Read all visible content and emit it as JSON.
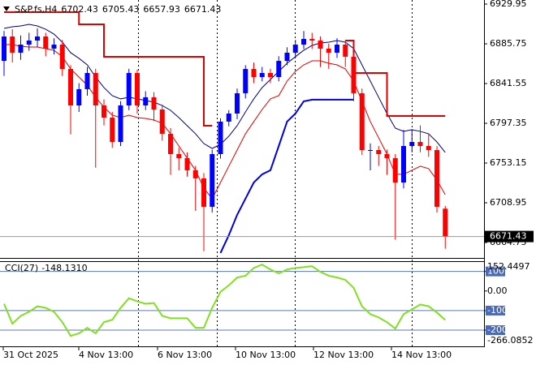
{
  "chart_data": {
    "type": "candlestick",
    "symbol": "S&P.fs,H4",
    "x_labels": [
      "31 Oct 2025",
      "4 Nov 13:00",
      "6 Nov 13:00",
      "10 Nov 13:00",
      "12 Nov 13:00",
      "14 Nov 13:00"
    ],
    "up_color": "#0000ff",
    "down_color": "#ff0000",
    "ylim": [
      6647.6,
      6934.5
    ],
    "yticks": [
      6929.95,
      6885.75,
      6841.55,
      6797.35,
      6753.15,
      6708.95,
      6664.75
    ],
    "candles": {
      "open": [
        6866.8,
        6893.9,
        6875.9,
        6884.9,
        6889.4,
        6893.9,
        6880.4,
        6884.9,
        6857.8,
        6817.2,
        6835.3,
        6853.3,
        6817.2,
        6803.7,
        6776.6,
        6817.2,
        6853.3,
        6817.2,
        6826.3,
        6812.7,
        6785.7,
        6763.1,
        6758.6,
        6745.1,
        6736.1,
        6704.5,
        6763.1,
        6799.2,
        6808.2,
        6830.8,
        6857.8,
        6848.8,
        6853.3,
        6848.8,
        6866.8,
        6875.9,
        6884.9,
        6891.2,
        6889.4,
        6880.4,
        6875.9,
        6884.9,
        6871.4,
        6830.8,
        6767.6,
        6767.6,
        6763.1,
        6758.6,
        6731.5,
        6772.1,
        6776.6,
        6772.1,
        6767.6,
        6702.43
      ],
      "high": [
        6900,
        6902,
        6895,
        6898,
        6903,
        6898,
        6892,
        6890,
        6862,
        6842,
        6860,
        6858,
        6824,
        6810,
        6822,
        6858,
        6857,
        6833,
        6832,
        6818,
        6792,
        6770,
        6765,
        6750,
        6742,
        6768,
        6803,
        6812,
        6836,
        6862,
        6865,
        6860,
        6858,
        6872,
        6882,
        6890,
        6900,
        6898,
        6894,
        6886,
        6892,
        6890,
        6876,
        6836,
        6775,
        6772,
        6768,
        6763,
        6790,
        6790,
        6795,
        6785,
        6772,
        6705.43
      ],
      "low": [
        6850,
        6865,
        6868,
        6878,
        6882,
        6872,
        6874,
        6850,
        6785,
        6810,
        6828,
        6748,
        6795,
        6770,
        6772,
        6812,
        6808,
        6812,
        6800,
        6778,
        6740,
        6745,
        6738,
        6700,
        6655,
        6698,
        6758,
        6794,
        6802,
        6825,
        6842,
        6844,
        6842,
        6844,
        6862,
        6870,
        6880,
        6880,
        6860,
        6858,
        6870,
        6860,
        6822,
        6762,
        6745,
        6750,
        6740,
        6668,
        6725,
        6765,
        6765,
        6760,
        6698,
        6657.93
      ],
      "close": [
        6893.9,
        6875.9,
        6884.9,
        6889.4,
        6893.9,
        6880.4,
        6884.9,
        6857.8,
        6817.2,
        6835.3,
        6853.3,
        6817.2,
        6803.7,
        6776.6,
        6817.2,
        6853.3,
        6817.2,
        6826.3,
        6812.7,
        6785.7,
        6763.1,
        6758.6,
        6745.1,
        6736.1,
        6704.5,
        6763.1,
        6799.2,
        6808.2,
        6830.8,
        6857.8,
        6848.8,
        6853.3,
        6848.8,
        6866.8,
        6875.9,
        6884.9,
        6891.2,
        6889.4,
        6880.4,
        6875.9,
        6884.9,
        6871.4,
        6830.8,
        6767.6,
        6767.6,
        6763.1,
        6758.6,
        6731.5,
        6772.1,
        6776.6,
        6772.1,
        6767.6,
        6704.5,
        6671.43
      ]
    },
    "series": [
      {
        "color": "#000080",
        "width": 1,
        "values": [
          6902.9,
          6904.7,
          6905.6,
          6907.4,
          6905.6,
          6902.0,
          6896.6,
          6887.6,
          6875.9,
          6869.6,
          6862.3,
          6848.8,
          6837.1,
          6828.1,
          6824.5,
          6826.3,
          6824.5,
          6822.7,
          6820.8,
          6817.2,
          6811.8,
          6803.7,
          6794.7,
          6785.7,
          6774.8,
          6769.4,
          6773.9,
          6783.0,
          6794.7,
          6810.0,
          6824.5,
          6837.1,
          6846.1,
          6855.1,
          6864.1,
          6871.4,
          6878.6,
          6884.0,
          6886.7,
          6887.6,
          6889.4,
          6887.6,
          6880.4,
          6862.3,
          6844.3,
          6826.3,
          6808.2,
          6792.0,
          6788.4,
          6790.2,
          6788.4,
          6785.7,
          6776.6,
          6764.9
        ]
      },
      {
        "color": "#e00000",
        "width": 1,
        "values": [
          6884.9,
          6884.9,
          6883.1,
          6882.2,
          6882.2,
          6880.4,
          6878.6,
          6871.4,
          6857.8,
          6848.8,
          6839.8,
          6826.3,
          6815.4,
          6806.4,
          6803.7,
          6806.4,
          6803.7,
          6802.8,
          6801.0,
          6797.4,
          6785.7,
          6772.1,
          6758.6,
          6745.1,
          6725.2,
          6713.5,
          6731.5,
          6749.6,
          6767.6,
          6785.7,
          6799.2,
          6812.7,
          6824.5,
          6828.1,
          6844.3,
          6855.1,
          6862.3,
          6866.8,
          6866.8,
          6864.1,
          6862.3,
          6857.8,
          6844.3,
          6821.8,
          6799.2,
          6781.2,
          6763.1,
          6740.6,
          6740.6,
          6745.1,
          6749.6,
          6746.9,
          6734.3,
          6718.0
        ]
      },
      {
        "color": "#e00000",
        "width": 2,
        "step": true,
        "values": [
          6921,
          6921,
          6921,
          6921,
          6921,
          6921,
          6921,
          6921,
          6921,
          6907.4,
          6907.4,
          6907.4,
          6871.4,
          6871.4,
          6871.4,
          6871.4,
          6871.4,
          6871.4,
          6871.4,
          6871.4,
          6871.4,
          6871.4,
          6871.4,
          6871.4,
          6794.7,
          6794.7,
          null,
          null,
          null,
          null,
          null,
          null,
          null,
          null,
          null,
          null,
          null,
          null,
          null,
          null,
          null,
          6889.4,
          6853.3,
          6853.3,
          6853.3,
          6853.3,
          6805.5,
          6805.5,
          6805.5,
          6805.5,
          6805.5,
          6805.5,
          6805.5,
          6805.5
        ]
      },
      {
        "color": "#0000e0",
        "width": 2,
        "values": [
          null,
          null,
          null,
          null,
          null,
          null,
          null,
          null,
          null,
          null,
          null,
          null,
          null,
          null,
          null,
          null,
          null,
          null,
          null,
          null,
          null,
          null,
          null,
          null,
          null,
          null,
          6653.1,
          6672.9,
          6695.5,
          6713.5,
          6731.5,
          6740.6,
          6745.1,
          6772.1,
          6799.2,
          6808.2,
          6821.8,
          6823.6,
          6823.6,
          6823.6,
          6823.6,
          6823.6,
          6823.6,
          null,
          null,
          null,
          null,
          null,
          null,
          null,
          null,
          null,
          null,
          null
        ]
      }
    ],
    "cci": {
      "name": "CCI(27)",
      "color": "#80e020",
      "last_label": "-148.1310",
      "ylim": [
        -266.0852,
        152.4497
      ],
      "yticks": [
        100,
        {
          "value": 0,
          "label": "0.00"
        },
        -100,
        -200
      ],
      "levels": [
        100,
        -100,
        -200
      ],
      "values": [
        -65,
        -167,
        -127,
        -106,
        -78,
        -86,
        -106,
        -159,
        -229,
        -216,
        -188,
        -216,
        -159,
        -147,
        -86,
        -37,
        -53,
        -65,
        -61,
        -127,
        -139,
        -139,
        -139,
        -188,
        -188,
        -86,
        -4,
        29,
        69,
        78,
        118,
        135,
        110,
        90,
        110,
        118,
        122,
        127,
        98,
        78,
        69,
        57,
        16,
        -78,
        -118,
        -135,
        -159,
        -192,
        -118,
        -94,
        -69,
        -78,
        -110,
        -148.131
      ]
    }
  }
}
